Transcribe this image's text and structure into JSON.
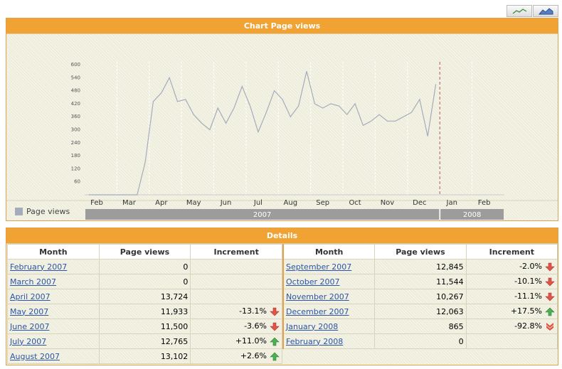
{
  "chart_data": {
    "type": "line",
    "title": "Chart Page views",
    "categories": [
      null,
      "Feb",
      null,
      null,
      null,
      "Mar",
      null,
      null,
      null,
      "Apr",
      null,
      null,
      null,
      "May",
      null,
      null,
      null,
      "Jun",
      null,
      null,
      null,
      "Jul",
      null,
      null,
      null,
      "Aug",
      null,
      null,
      null,
      "Sep",
      null,
      null,
      null,
      "Oct",
      null,
      null,
      null,
      "Nov",
      null,
      null,
      null,
      "Dec",
      null,
      null,
      null,
      "Jan",
      null,
      null,
      null,
      "Feb",
      null,
      null
    ],
    "x_groups": [
      "2007",
      "2008"
    ],
    "series": [
      {
        "name": "Page views",
        "color": "#a4acbc",
        "values": [
          0,
          0,
          0,
          0,
          0,
          0,
          0,
          150,
          430,
          470,
          540,
          430,
          440,
          370,
          330,
          300,
          400,
          330,
          400,
          500,
          410,
          290,
          380,
          480,
          440,
          360,
          410,
          570,
          420,
          400,
          420,
          410,
          370,
          420,
          320,
          340,
          370,
          340,
          340,
          360,
          380,
          440,
          270,
          510,
          null,
          null,
          null,
          null,
          null,
          null,
          null,
          null
        ]
      }
    ],
    "ylim": [
      0,
      600
    ],
    "yticks": [
      60,
      120,
      180,
      240,
      300,
      360,
      420,
      480,
      540,
      600
    ]
  },
  "table": {
    "title": "Details",
    "columns": [
      "Month",
      "Page views",
      "Increment"
    ],
    "left_rows": [
      {
        "month": "February 2007",
        "views": "0"
      },
      {
        "month": "March 2007",
        "views": "0"
      },
      {
        "month": "April 2007",
        "views": "13,724"
      },
      {
        "month": "May 2007",
        "views": "11,933",
        "increment": "-13.1%",
        "trend": "down"
      },
      {
        "month": "June 2007",
        "views": "11,500",
        "increment": "-3.6%",
        "trend": "down"
      },
      {
        "month": "July 2007",
        "views": "12,765",
        "increment": "+11.0%",
        "trend": "up"
      },
      {
        "month": "August 2007",
        "views": "13,102",
        "increment": "+2.6%",
        "trend": "up"
      }
    ],
    "right_rows": [
      {
        "month": "September 2007",
        "views": "12,845",
        "increment": "-2.0%",
        "trend": "down"
      },
      {
        "month": "October 2007",
        "views": "11,544",
        "increment": "-10.1%",
        "trend": "down"
      },
      {
        "month": "November 2007",
        "views": "10,267",
        "increment": "-11.1%",
        "trend": "down"
      },
      {
        "month": "December 2007",
        "views": "12,063",
        "increment": "+17.5%",
        "trend": "up"
      },
      {
        "month": "January 2008",
        "views": "865",
        "increment": "-92.8%",
        "trend": "down-strong"
      },
      {
        "month": "February 2008",
        "views": "0"
      }
    ]
  }
}
